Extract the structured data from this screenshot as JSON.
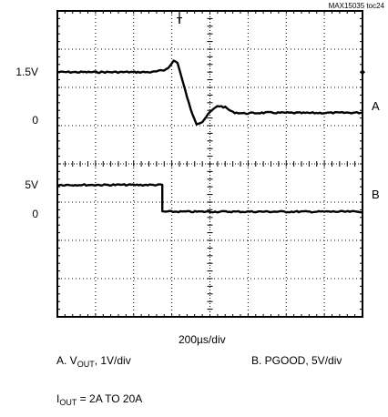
{
  "figure_id": "MAX15035 toc24",
  "chart_data": {
    "type": "line",
    "xlabel": "200µs/div",
    "x_divisions": 8,
    "y_divisions": 8,
    "grid": true,
    "channel_labels": [
      {
        "id": "A",
        "text": "A"
      },
      {
        "id": "B",
        "text": "B"
      }
    ],
    "y_tick_labels": [
      {
        "text": "1.5V",
        "div_from_top": 1.6
      },
      {
        "text": "0",
        "div_from_top": 2.85
      },
      {
        "text": "5V",
        "div_from_top": 4.55
      },
      {
        "text": "0",
        "div_from_top": 5.3
      }
    ],
    "series": [
      {
        "name": "A",
        "units_per_div": "1V/div",
        "zero_div_from_top": 2.85,
        "points_div": [
          [
            0.0,
            1.6
          ],
          [
            2.5,
            1.6
          ],
          [
            2.8,
            1.55
          ],
          [
            2.95,
            1.45
          ],
          [
            3.05,
            1.3
          ],
          [
            3.15,
            1.35
          ],
          [
            3.3,
            1.9
          ],
          [
            3.5,
            2.6
          ],
          [
            3.65,
            2.95
          ],
          [
            3.8,
            2.9
          ],
          [
            4.0,
            2.65
          ],
          [
            4.2,
            2.48
          ],
          [
            4.4,
            2.52
          ],
          [
            4.6,
            2.65
          ],
          [
            4.9,
            2.68
          ],
          [
            5.5,
            2.66
          ],
          [
            6.5,
            2.67
          ],
          [
            8.0,
            2.66
          ]
        ]
      },
      {
        "name": "B",
        "units_per_div": "5V/div",
        "zero_div_from_top": 5.3,
        "points_div": [
          [
            0.0,
            4.55
          ],
          [
            2.75,
            4.55
          ],
          [
            2.75,
            5.25
          ],
          [
            8.0,
            5.25
          ]
        ]
      }
    ]
  },
  "captions": {
    "a_prefix": "A. V",
    "a_sub": "OUT",
    "a_suffix": ", 1V/div",
    "b_text": "B. PGOOD, 5V/div",
    "iout_prefix": "I",
    "iout_sub": "OUT",
    "iout_suffix": " = 2A TO 20A"
  },
  "trigger_marker": "T"
}
